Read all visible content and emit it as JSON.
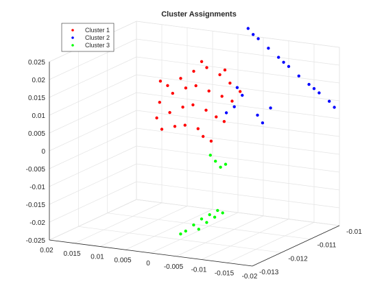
{
  "chart_data": {
    "type": "scatter",
    "title": "Cluster Assignments",
    "projection": "3d",
    "grid": true,
    "legend_position": "top-left",
    "x_axis": {
      "ticks": [
        "0.02",
        "0.015",
        "0.01",
        "0.005",
        "0",
        "-0.005",
        "-0.01",
        "-0.015",
        "-0.02"
      ],
      "range": [
        0.02,
        -0.02
      ]
    },
    "y_axis": {
      "ticks": [
        "-0.013",
        "-0.012",
        "-0.011",
        "-0.01"
      ],
      "range": [
        -0.013,
        -0.01
      ]
    },
    "z_axis": {
      "ticks": [
        "-0.025",
        "-0.02",
        "-0.015",
        "-0.01",
        "-0.005",
        "0",
        "0.005",
        "0.01",
        "0.015",
        "0.02",
        "0.025"
      ],
      "range": [
        -0.025,
        0.025
      ]
    },
    "series": [
      {
        "name": "Cluster 1",
        "color": "#ff0000",
        "points": [
          {
            "x": 0.011,
            "y": -0.0105,
            "z": 0.0105
          },
          {
            "x": 0.009,
            "y": -0.0104,
            "z": 0.0125
          },
          {
            "x": 0.007,
            "y": -0.0103,
            "z": 0.0145
          },
          {
            "x": 0.005,
            "y": -0.0102,
            "z": 0.0155
          },
          {
            "x": 0.003,
            "y": -0.0101,
            "z": 0.0135
          },
          {
            "x": 0.001,
            "y": -0.0101,
            "z": 0.0115
          },
          {
            "x": -0.001,
            "y": -0.0101,
            "z": 0.0095
          },
          {
            "x": 0.012,
            "y": -0.0106,
            "z": 0.006
          },
          {
            "x": 0.01,
            "y": -0.0105,
            "z": 0.0085
          },
          {
            "x": 0.008,
            "y": -0.0104,
            "z": 0.01
          },
          {
            "x": 0.006,
            "y": -0.0104,
            "z": 0.011
          },
          {
            "x": 0.004,
            "y": -0.0103,
            "z": 0.0095
          },
          {
            "x": 0.002,
            "y": -0.0102,
            "z": 0.008
          },
          {
            "x": 0.0,
            "y": -0.0102,
            "z": 0.007
          },
          {
            "x": 0.012,
            "y": -0.0107,
            "z": 0.002
          },
          {
            "x": 0.01,
            "y": -0.0106,
            "z": 0.0035
          },
          {
            "x": 0.008,
            "y": -0.0105,
            "z": 0.005
          },
          {
            "x": 0.006,
            "y": -0.0105,
            "z": 0.006
          },
          {
            "x": 0.004,
            "y": -0.0104,
            "z": 0.0045
          },
          {
            "x": 0.002,
            "y": -0.0104,
            "z": 0.003
          },
          {
            "x": 0.001,
            "y": -0.0103,
            "z": 0.0015
          },
          {
            "x": 0.011,
            "y": -0.0107,
            "z": -0.001
          },
          {
            "x": 0.009,
            "y": -0.0106,
            "z": -0.0002
          },
          {
            "x": 0.007,
            "y": -0.0106,
            "z": 0.0005
          },
          {
            "x": 0.005,
            "y": -0.0105,
            "z": -0.0005
          },
          {
            "x": 0.004,
            "y": -0.0105,
            "z": -0.0025
          },
          {
            "x": 0.003,
            "y": -0.0104,
            "z": -0.004
          },
          {
            "x": 0.013,
            "y": -0.0104,
            "z": 0.011
          },
          {
            "x": 0.006,
            "y": -0.0102,
            "z": 0.017
          },
          {
            "x": 0.002,
            "y": -0.0101,
            "z": 0.015
          }
        ]
      },
      {
        "name": "Cluster 2",
        "color": "#0000ff",
        "points": [
          {
            "x": -0.002,
            "y": -0.01,
            "z": 0.027
          },
          {
            "x": -0.004,
            "y": -0.01,
            "z": 0.0245
          },
          {
            "x": -0.006,
            "y": -0.01,
            "z": 0.0222
          },
          {
            "x": -0.008,
            "y": -0.01,
            "z": 0.02
          },
          {
            "x": -0.01,
            "y": -0.01,
            "z": 0.0178
          },
          {
            "x": -0.012,
            "y": -0.01,
            "z": 0.0155
          },
          {
            "x": -0.014,
            "y": -0.01,
            "z": 0.0135
          },
          {
            "x": -0.016,
            "y": -0.01,
            "z": 0.0115
          },
          {
            "x": -0.018,
            "y": -0.01,
            "z": 0.0095
          },
          {
            "x": -0.019,
            "y": -0.01,
            "z": 0.008
          },
          {
            "x": -0.003,
            "y": -0.01,
            "z": 0.0255
          },
          {
            "x": -0.009,
            "y": -0.01,
            "z": 0.0188
          },
          {
            "x": -0.015,
            "y": -0.01,
            "z": 0.0125
          },
          {
            "x": -0.001,
            "y": -0.0102,
            "z": 0.011
          },
          {
            "x": -0.002,
            "y": -0.0102,
            "z": 0.009
          },
          {
            "x": -0.001,
            "y": -0.0103,
            "z": 0.006
          },
          {
            "x": -0.005,
            "y": -0.0102,
            "z": 0.004
          },
          {
            "x": -0.006,
            "y": -0.0102,
            "z": 0.002
          },
          {
            "x": -0.007,
            "y": -0.0101,
            "z": 0.006
          },
          {
            "x": 0.0,
            "y": -0.0104,
            "z": 0.0045
          }
        ]
      },
      {
        "name": "Cluster 3",
        "color": "#00ff00",
        "points": [
          {
            "x": 0.002,
            "y": -0.0106,
            "z": -0.007
          },
          {
            "x": 0.001,
            "y": -0.0106,
            "z": -0.0085
          },
          {
            "x": 0.0,
            "y": -0.0106,
            "z": -0.01
          },
          {
            "x": -0.001,
            "y": -0.0106,
            "z": -0.009
          },
          {
            "x": -0.004,
            "y": -0.0125,
            "z": -0.02
          },
          {
            "x": -0.005,
            "y": -0.0124,
            "z": -0.0185
          },
          {
            "x": -0.006,
            "y": -0.0123,
            "z": -0.017
          },
          {
            "x": -0.007,
            "y": -0.0122,
            "z": -0.016
          },
          {
            "x": -0.008,
            "y": -0.0121,
            "z": -0.015
          },
          {
            "x": -0.003,
            "y": -0.0125,
            "z": -0.021
          },
          {
            "x": -0.006,
            "y": -0.0124,
            "z": -0.0195
          },
          {
            "x": -0.007,
            "y": -0.0123,
            "z": -0.0178
          },
          {
            "x": -0.008,
            "y": -0.0122,
            "z": -0.0165
          },
          {
            "x": -0.009,
            "y": -0.0121,
            "z": -0.0155
          }
        ]
      }
    ]
  }
}
